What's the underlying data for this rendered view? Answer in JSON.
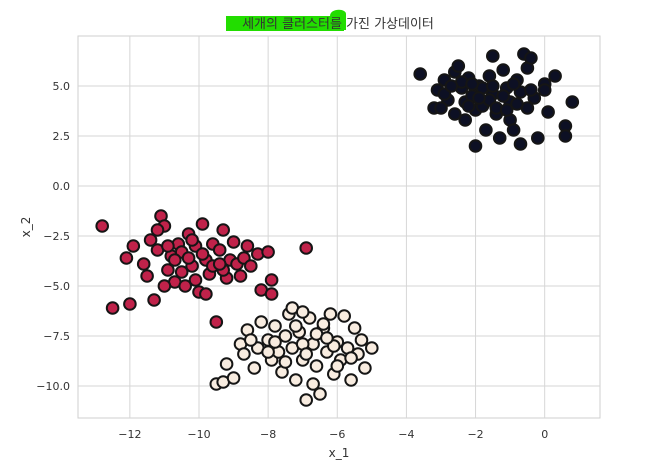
{
  "chart_data": {
    "type": "scatter",
    "title": "세개의 클러스터를 가진 가상데이터",
    "xlabel": "x_1",
    "ylabel": "x_2",
    "xlim": [
      -13.5,
      1.6
    ],
    "ylim": [
      -11.6,
      7.5
    ],
    "xticks": [
      -12,
      -10,
      -8,
      -6,
      -4,
      -2,
      0
    ],
    "yticks": [
      5.0,
      2.5,
      0.0,
      -2.5,
      -5.0,
      -7.5,
      -10.0
    ],
    "xtick_labels": [
      "−12",
      "−10",
      "−8",
      "−6",
      "−4",
      "−2",
      "0"
    ],
    "ytick_labels": [
      "5.0",
      "2.5",
      "0.0",
      "−2.5",
      "−5.0",
      "−7.5",
      "−10.0"
    ],
    "grid": true,
    "highlight_color": "#22dd00",
    "series": [
      {
        "color": "#0d1024",
        "points": [
          [
            -3.6,
            5.6
          ],
          [
            -3.2,
            3.9
          ],
          [
            -3.1,
            4.8
          ],
          [
            -2.9,
            5.3
          ],
          [
            -2.8,
            4.3
          ],
          [
            -2.6,
            5.7
          ],
          [
            -2.5,
            6.0
          ],
          [
            -2.4,
            4.9
          ],
          [
            -2.3,
            4.2
          ],
          [
            -2.3,
            3.3
          ],
          [
            -2.2,
            5.4
          ],
          [
            -2.1,
            4.5
          ],
          [
            -2.0,
            3.8
          ],
          [
            -2.0,
            2.0
          ],
          [
            -1.9,
            5.0
          ],
          [
            -1.8,
            4.0
          ],
          [
            -1.7,
            2.8
          ],
          [
            -1.6,
            5.5
          ],
          [
            -1.5,
            4.6
          ],
          [
            -1.5,
            6.5
          ],
          [
            -1.4,
            3.6
          ],
          [
            -1.3,
            2.4
          ],
          [
            -1.2,
            5.8
          ],
          [
            -1.1,
            4.9
          ],
          [
            -1.0,
            3.3
          ],
          [
            -1.0,
            4.2
          ],
          [
            -0.9,
            2.8
          ],
          [
            -0.8,
            5.3
          ],
          [
            -0.7,
            2.1
          ],
          [
            -0.7,
            4.7
          ],
          [
            -0.6,
            6.6
          ],
          [
            -0.5,
            5.9
          ],
          [
            -0.5,
            3.9
          ],
          [
            -0.4,
            6.4
          ],
          [
            -0.3,
            4.4
          ],
          [
            -0.2,
            2.4
          ],
          [
            0.0,
            5.1
          ],
          [
            0.0,
            4.8
          ],
          [
            0.1,
            3.7
          ],
          [
            0.3,
            5.5
          ],
          [
            0.6,
            3.0
          ],
          [
            0.6,
            2.5
          ],
          [
            0.8,
            4.2
          ],
          [
            -2.6,
            3.6
          ],
          [
            -2.9,
            4.6
          ],
          [
            -1.8,
            4.9
          ],
          [
            -1.2,
            4.5
          ],
          [
            -0.9,
            5.1
          ],
          [
            -2.2,
            4.0
          ],
          [
            -1.6,
            4.3
          ],
          [
            -3.0,
            3.9
          ],
          [
            -2.4,
            5.2
          ],
          [
            -1.4,
            3.9
          ],
          [
            -0.8,
            4.1
          ],
          [
            -2.7,
            5.0
          ],
          [
            -1.9,
            4.4
          ],
          [
            -1.1,
            3.8
          ],
          [
            -0.4,
            4.8
          ],
          [
            -2.1,
            5.1
          ],
          [
            -1.5,
            5.0
          ]
        ]
      },
      {
        "color": "#c0224a",
        "points": [
          [
            -12.8,
            -2.0
          ],
          [
            -12.5,
            -6.1
          ],
          [
            -12.1,
            -3.6
          ],
          [
            -12.0,
            -5.9
          ],
          [
            -11.9,
            -3.0
          ],
          [
            -11.6,
            -3.9
          ],
          [
            -11.5,
            -4.5
          ],
          [
            -11.4,
            -2.7
          ],
          [
            -11.3,
            -5.7
          ],
          [
            -11.2,
            -3.2
          ],
          [
            -11.1,
            -1.5
          ],
          [
            -11.0,
            -2.0
          ],
          [
            -10.9,
            -4.2
          ],
          [
            -10.8,
            -3.5
          ],
          [
            -10.7,
            -4.8
          ],
          [
            -10.6,
            -2.9
          ],
          [
            -10.5,
            -3.3
          ],
          [
            -10.4,
            -5.0
          ],
          [
            -10.3,
            -2.4
          ],
          [
            -10.2,
            -4.0
          ],
          [
            -10.1,
            -3.0
          ],
          [
            -10.0,
            -5.3
          ],
          [
            -9.9,
            -1.9
          ],
          [
            -9.8,
            -3.7
          ],
          [
            -9.7,
            -4.4
          ],
          [
            -9.6,
            -2.9
          ],
          [
            -9.5,
            -6.8
          ],
          [
            -9.4,
            -3.2
          ],
          [
            -9.3,
            -2.2
          ],
          [
            -9.2,
            -4.6
          ],
          [
            -9.1,
            -3.7
          ],
          [
            -9.0,
            -2.8
          ],
          [
            -8.9,
            -3.9
          ],
          [
            -8.8,
            -4.5
          ],
          [
            -8.7,
            -3.6
          ],
          [
            -8.6,
            -3.0
          ],
          [
            -8.5,
            -4.0
          ],
          [
            -8.3,
            -3.4
          ],
          [
            -8.2,
            -5.2
          ],
          [
            -8.0,
            -3.3
          ],
          [
            -7.9,
            -4.7
          ],
          [
            -7.9,
            -5.4
          ],
          [
            -6.9,
            -3.1
          ],
          [
            -11.2,
            -2.2
          ],
          [
            -10.7,
            -3.7
          ],
          [
            -10.1,
            -4.7
          ],
          [
            -9.6,
            -4.0
          ],
          [
            -10.3,
            -3.6
          ],
          [
            -9.9,
            -3.4
          ],
          [
            -10.5,
            -4.3
          ],
          [
            -9.3,
            -4.2
          ],
          [
            -10.9,
            -3.0
          ],
          [
            -11.0,
            -5.0
          ],
          [
            -9.8,
            -5.4
          ],
          [
            -10.2,
            -2.7
          ],
          [
            -9.4,
            -3.9
          ]
        ]
      },
      {
        "color": "#f8ece0",
        "points": [
          [
            -9.5,
            -9.9
          ],
          [
            -9.3,
            -9.8
          ],
          [
            -9.2,
            -8.9
          ],
          [
            -9.0,
            -9.6
          ],
          [
            -8.8,
            -7.9
          ],
          [
            -8.7,
            -8.4
          ],
          [
            -8.6,
            -7.2
          ],
          [
            -8.4,
            -9.1
          ],
          [
            -8.3,
            -8.1
          ],
          [
            -8.2,
            -6.8
          ],
          [
            -8.0,
            -7.7
          ],
          [
            -7.9,
            -8.7
          ],
          [
            -7.8,
            -7.0
          ],
          [
            -7.7,
            -8.3
          ],
          [
            -7.6,
            -9.3
          ],
          [
            -7.5,
            -7.5
          ],
          [
            -7.4,
            -6.4
          ],
          [
            -7.3,
            -8.1
          ],
          [
            -7.2,
            -9.7
          ],
          [
            -7.1,
            -7.3
          ],
          [
            -7.0,
            -8.7
          ],
          [
            -6.9,
            -10.7
          ],
          [
            -6.8,
            -6.6
          ],
          [
            -6.7,
            -7.9
          ],
          [
            -6.6,
            -9.0
          ],
          [
            -6.5,
            -10.4
          ],
          [
            -6.4,
            -7.1
          ],
          [
            -6.3,
            -8.3
          ],
          [
            -6.2,
            -6.4
          ],
          [
            -6.1,
            -9.4
          ],
          [
            -6.0,
            -7.8
          ],
          [
            -5.9,
            -8.7
          ],
          [
            -5.8,
            -6.5
          ],
          [
            -5.7,
            -8.1
          ],
          [
            -5.6,
            -9.7
          ],
          [
            -5.5,
            -7.1
          ],
          [
            -5.4,
            -8.4
          ],
          [
            -5.3,
            -7.7
          ],
          [
            -5.2,
            -9.1
          ],
          [
            -5.0,
            -8.1
          ],
          [
            -7.3,
            -6.1
          ],
          [
            -8.0,
            -8.3
          ],
          [
            -7.0,
            -7.9
          ],
          [
            -6.6,
            -7.4
          ],
          [
            -6.1,
            -8.0
          ],
          [
            -7.5,
            -8.8
          ],
          [
            -6.9,
            -8.4
          ],
          [
            -6.3,
            -7.6
          ],
          [
            -7.8,
            -7.8
          ],
          [
            -6.7,
            -9.9
          ],
          [
            -6.0,
            -9.0
          ],
          [
            -5.6,
            -8.6
          ],
          [
            -7.2,
            -7.0
          ],
          [
            -6.4,
            -6.9
          ],
          [
            -8.5,
            -7.7
          ],
          [
            -7.0,
            -6.3
          ]
        ]
      }
    ]
  }
}
